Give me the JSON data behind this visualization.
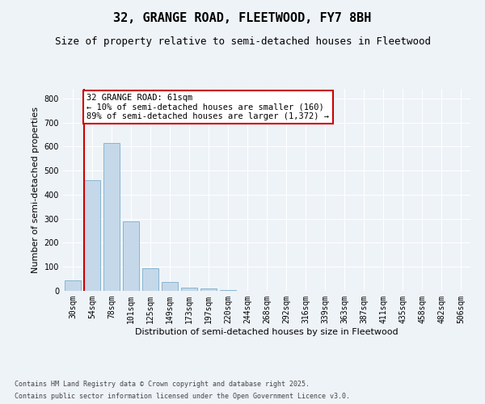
{
  "title": "32, GRANGE ROAD, FLEETWOOD, FY7 8BH",
  "subtitle": "Size of property relative to semi-detached houses in Fleetwood",
  "xlabel": "Distribution of semi-detached houses by size in Fleetwood",
  "ylabel": "Number of semi-detached properties",
  "categories": [
    "30sqm",
    "54sqm",
    "78sqm",
    "101sqm",
    "125sqm",
    "149sqm",
    "173sqm",
    "197sqm",
    "220sqm",
    "244sqm",
    "268sqm",
    "292sqm",
    "316sqm",
    "339sqm",
    "363sqm",
    "387sqm",
    "411sqm",
    "435sqm",
    "458sqm",
    "482sqm",
    "506sqm"
  ],
  "values": [
    45,
    460,
    615,
    290,
    93,
    37,
    14,
    10,
    5,
    0,
    0,
    0,
    0,
    0,
    0,
    0,
    0,
    0,
    0,
    0,
    0
  ],
  "bar_color": "#c5d8ea",
  "bar_edge_color": "#7aadcc",
  "vline_color": "#cc0000",
  "annotation_title": "32 GRANGE ROAD: 61sqm",
  "annotation_line2": "← 10% of semi-detached houses are smaller (160)",
  "annotation_line3": "89% of semi-detached houses are larger (1,372) →",
  "annotation_box_edgecolor": "#cc0000",
  "ylim": [
    0,
    840
  ],
  "yticks": [
    0,
    100,
    200,
    300,
    400,
    500,
    600,
    700,
    800
  ],
  "footer_line1": "Contains HM Land Registry data © Crown copyright and database right 2025.",
  "footer_line2": "Contains public sector information licensed under the Open Government Licence v3.0.",
  "bg_color": "#eef3f8",
  "grid_color": "#ffffff",
  "title_fontsize": 11,
  "subtitle_fontsize": 9,
  "tick_fontsize": 7,
  "ylabel_fontsize": 8,
  "xlabel_fontsize": 8,
  "footer_fontsize": 6,
  "annot_fontsize": 7.5
}
